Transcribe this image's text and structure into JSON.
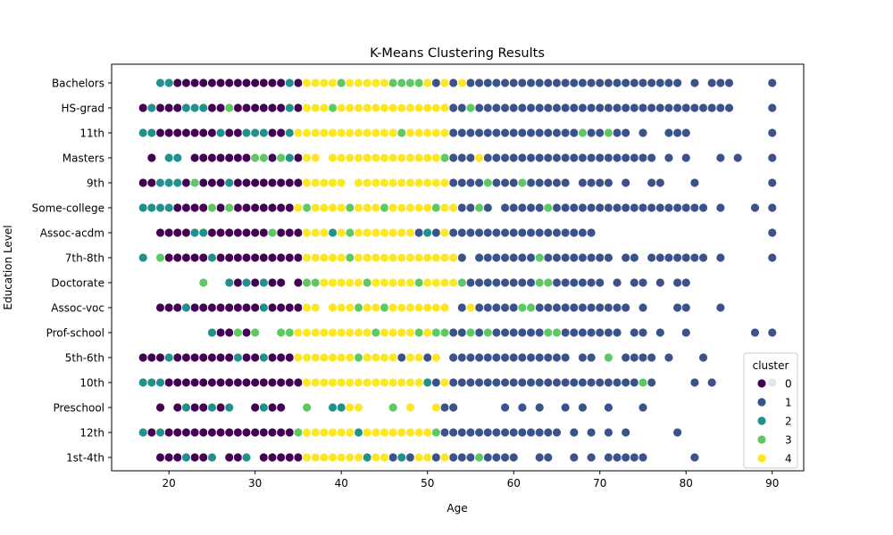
{
  "chart_data": {
    "type": "scatter",
    "title": "K-Means Clustering Results",
    "xlabel": "Age",
    "ylabel": "Education Level",
    "xlim": [
      13.35,
      93.65
    ],
    "x_ticks": [
      20,
      30,
      40,
      50,
      60,
      70,
      80,
      90
    ],
    "categories": [
      "Bachelors",
      "HS-grad",
      "11th",
      "Masters",
      "9th",
      "Some-college",
      "Assoc-acdm",
      "7th-8th",
      "Doctorate",
      "Assoc-voc",
      "Prof-school",
      "5th-6th",
      "10th",
      "Preschool",
      "12th",
      "1st-4th"
    ],
    "grid": false,
    "legend": {
      "title": "cluster",
      "placement": "lower right",
      "entries": [
        {
          "label": "0",
          "color": "#440154"
        },
        {
          "label": "1",
          "color": "#3b528b"
        },
        {
          "label": "2",
          "color": "#21918c"
        },
        {
          "label": "3",
          "color": "#5ec962"
        },
        {
          "label": "4",
          "color": "#fde725"
        }
      ]
    },
    "series": [
      {
        "name": "0",
        "color": "#440154",
        "points": {
          "Bachelors": [
            21,
            22,
            23,
            24,
            25,
            26,
            27,
            28,
            29,
            30,
            31,
            32,
            33,
            35
          ],
          "HS-grad": [
            17,
            19,
            20,
            21,
            25,
            26,
            28,
            29,
            30,
            31,
            32,
            33,
            35
          ],
          "11th": [
            18,
            19,
            20,
            21,
            22,
            23,
            24,
            25,
            27,
            28,
            32,
            33
          ],
          "Masters": [
            18,
            23,
            24,
            25,
            26,
            27,
            28,
            29,
            32,
            35
          ],
          "9th": [
            17,
            18,
            22,
            23,
            24,
            25,
            26,
            28,
            29,
            30,
            31,
            32,
            33,
            34,
            35
          ],
          "Some-college": [
            21,
            22,
            23,
            24,
            25,
            26,
            28,
            29,
            30,
            31,
            32,
            33,
            34
          ],
          "Assoc-acdm": [
            19,
            20,
            21,
            22,
            25,
            26,
            27,
            28,
            29,
            30,
            31,
            33,
            34,
            35
          ],
          "7th-8th": [
            20,
            21,
            22,
            23,
            24,
            26,
            27,
            28,
            29,
            30,
            31,
            32,
            33,
            34,
            35
          ],
          "Doctorate": [
            28,
            30,
            32,
            33,
            35
          ],
          "Assoc-voc": [
            19,
            20,
            21,
            23,
            24,
            25,
            26,
            27,
            28,
            29,
            30,
            32,
            33,
            34,
            35
          ],
          "Prof-school": [
            26,
            27,
            29
          ],
          "5th-6th": [
            17,
            18,
            19,
            21,
            22,
            23,
            24,
            25,
            26,
            27,
            29,
            30,
            32,
            33,
            34
          ],
          "10th": [
            20,
            21,
            22,
            23,
            24,
            25,
            26,
            27,
            28,
            29,
            30,
            31,
            32,
            33,
            34,
            35
          ],
          "Preschool": [
            19,
            21,
            23,
            24,
            26,
            30,
            32,
            33
          ],
          "12th": [
            18,
            20,
            21,
            22,
            23,
            24,
            25,
            26,
            27,
            28,
            29,
            30,
            31,
            32,
            33,
            34
          ],
          "1st-4th": [
            19,
            20,
            21,
            23,
            24,
            27,
            28,
            31,
            32,
            33,
            34,
            35
          ]
        }
      },
      {
        "name": "1",
        "color": "#3b528b",
        "points": {
          "Bachelors": [
            51,
            53,
            55,
            56,
            57,
            58,
            59,
            60,
            61,
            62,
            63,
            64,
            65,
            66,
            67,
            68,
            69,
            70,
            71,
            72,
            73,
            74,
            75,
            76,
            77,
            78,
            79,
            81,
            83,
            84,
            85,
            90
          ],
          "HS-grad": [
            53,
            54,
            56,
            57,
            58,
            59,
            60,
            61,
            62,
            63,
            64,
            65,
            66,
            67,
            68,
            69,
            70,
            71,
            72,
            73,
            74,
            75,
            76,
            77,
            78,
            79,
            80,
            81,
            82,
            83,
            84,
            85,
            90
          ],
          "11th": [
            53,
            54,
            55,
            56,
            57,
            58,
            59,
            60,
            61,
            62,
            63,
            64,
            65,
            66,
            67,
            69,
            70,
            72,
            73,
            75,
            78,
            79,
            80,
            90
          ],
          "Masters": [
            53,
            54,
            55,
            57,
            58,
            59,
            60,
            61,
            62,
            63,
            64,
            65,
            66,
            67,
            68,
            69,
            70,
            71,
            72,
            73,
            74,
            75,
            76,
            78,
            80,
            84,
            86,
            90
          ],
          "9th": [
            53,
            54,
            55,
            56,
            58,
            59,
            60,
            62,
            63,
            64,
            65,
            66,
            68,
            69,
            70,
            71,
            73,
            76,
            77,
            81,
            90
          ],
          "Some-college": [
            54,
            55,
            56,
            57,
            59,
            60,
            61,
            62,
            63,
            65,
            66,
            67,
            68,
            69,
            70,
            71,
            72,
            73,
            74,
            75,
            76,
            77,
            78,
            79,
            80,
            81,
            82,
            84,
            88,
            90
          ],
          "Assoc-acdm": [
            49,
            51,
            53,
            54,
            55,
            56,
            57,
            58,
            59,
            60,
            61,
            62,
            63,
            64,
            65,
            66,
            67,
            68,
            69,
            90
          ],
          "7th-8th": [
            54,
            56,
            57,
            58,
            59,
            60,
            61,
            62,
            64,
            65,
            66,
            67,
            68,
            69,
            70,
            71,
            73,
            74,
            76,
            77,
            78,
            79,
            80,
            81,
            82,
            84,
            90
          ],
          "Doctorate": [
            55,
            56,
            57,
            58,
            59,
            60,
            61,
            62,
            65,
            66,
            67,
            68,
            69,
            70,
            72,
            74,
            75,
            77,
            79,
            80
          ],
          "Assoc-voc": [
            54,
            56,
            57,
            58,
            59,
            60,
            62,
            63,
            64,
            65,
            66,
            67,
            68,
            69,
            70,
            71,
            72,
            73,
            75,
            79,
            80,
            84
          ],
          "Prof-school": [
            53,
            54,
            56,
            58,
            59,
            60,
            61,
            62,
            63,
            66,
            67,
            68,
            69,
            70,
            71,
            72,
            74,
            75,
            77,
            80,
            88,
            90
          ],
          "5th-6th": [
            47,
            50,
            53,
            54,
            55,
            56,
            57,
            58,
            59,
            60,
            61,
            62,
            63,
            64,
            65,
            66,
            68,
            69,
            73,
            74,
            75,
            76,
            78,
            82
          ],
          "10th": [
            51,
            53,
            54,
            55,
            56,
            57,
            58,
            59,
            60,
            61,
            62,
            63,
            64,
            65,
            66,
            67,
            68,
            69,
            70,
            71,
            72,
            73,
            74,
            76,
            81,
            83,
            90
          ],
          "Preschool": [
            51,
            52,
            53,
            59,
            61,
            63,
            66,
            68,
            71,
            75
          ],
          "12th": [
            52,
            53,
            54,
            55,
            56,
            57,
            58,
            59,
            60,
            61,
            62,
            63,
            64,
            65,
            67,
            69,
            71,
            73,
            79
          ],
          "1st-4th": [
            44,
            46,
            48,
            51,
            53,
            54,
            55,
            57,
            58,
            59,
            60,
            63,
            64,
            67,
            69,
            71,
            72,
            73,
            74,
            75,
            81
          ]
        }
      },
      {
        "name": "2",
        "color": "#21918c",
        "points": {
          "Bachelors": [
            19,
            20,
            34
          ],
          "HS-grad": [
            18,
            22,
            23,
            24,
            34
          ],
          "11th": [
            17,
            18,
            26,
            29,
            30,
            31,
            34
          ],
          "Masters": [
            20,
            21,
            34
          ],
          "9th": [
            19,
            20,
            21,
            27
          ],
          "Some-college": [
            17,
            18,
            19,
            20,
            27
          ],
          "Assoc-acdm": [
            23,
            24,
            39,
            50
          ],
          "7th-8th": [
            17,
            25
          ],
          "Doctorate": [
            27,
            29,
            31
          ],
          "Assoc-voc": [
            22,
            31
          ],
          "Prof-school": [
            25
          ],
          "5th-6th": [
            20,
            28,
            31
          ],
          "10th": [
            17,
            18,
            19,
            50
          ],
          "Preschool": [
            22,
            25,
            27,
            31,
            39,
            40
          ],
          "12th": [
            17,
            19,
            42
          ],
          "1st-4th": [
            22,
            25,
            29,
            43,
            47
          ]
        }
      },
      {
        "name": "3",
        "color": "#5ec962",
        "points": {
          "Bachelors": [
            40,
            46,
            47,
            48,
            49
          ],
          "HS-grad": [
            27,
            39,
            55
          ],
          "11th": [
            47,
            68,
            71
          ],
          "Masters": [
            30,
            31,
            33,
            52
          ],
          "9th": [
            23,
            57,
            61
          ],
          "Some-college": [
            25,
            27,
            36,
            41,
            45,
            51,
            56,
            64
          ],
          "Assoc-acdm": [
            32,
            41
          ],
          "7th-8th": [
            19,
            41,
            63
          ],
          "Doctorate": [
            24,
            36,
            37,
            43,
            49,
            54,
            63,
            64
          ],
          "Assoc-voc": [
            42,
            45,
            61,
            62
          ],
          "Prof-school": [
            28,
            30,
            33,
            34,
            44,
            49,
            51,
            52,
            55,
            57,
            64,
            65
          ],
          "5th-6th": [
            42,
            71
          ],
          "10th": [
            75
          ],
          "Preschool": [
            36,
            46
          ],
          "12th": [
            35,
            51
          ],
          "1st-4th": [
            56
          ]
        }
      },
      {
        "name": "4",
        "color": "#fde725",
        "points": {
          "Bachelors": [
            36,
            37,
            38,
            39,
            41,
            42,
            43,
            44,
            45,
            50,
            52,
            54
          ],
          "HS-grad": [
            36,
            37,
            38,
            40,
            41,
            42,
            43,
            44,
            45,
            46,
            47,
            48,
            49,
            50,
            51,
            52
          ],
          "11th": [
            35,
            36,
            37,
            38,
            39,
            40,
            41,
            42,
            43,
            44,
            45,
            46,
            48,
            49,
            50,
            51,
            52
          ],
          "Masters": [
            36,
            37,
            39,
            40,
            41,
            42,
            43,
            44,
            45,
            46,
            47,
            48,
            49,
            50,
            51,
            56
          ],
          "9th": [
            36,
            37,
            38,
            39,
            40,
            42,
            43,
            44,
            45,
            46,
            47,
            48,
            49,
            50,
            51,
            52
          ],
          "Some-college": [
            35,
            37,
            38,
            39,
            40,
            42,
            43,
            44,
            46,
            47,
            48,
            49,
            50,
            52,
            53
          ],
          "Assoc-acdm": [
            36,
            37,
            38,
            40,
            42,
            43,
            44,
            45,
            46,
            47,
            48,
            52
          ],
          "7th-8th": [
            36,
            37,
            38,
            39,
            40,
            42,
            43,
            44,
            45,
            46,
            47,
            48,
            49,
            50,
            51,
            52,
            53
          ],
          "Doctorate": [
            38,
            39,
            40,
            41,
            42,
            44,
            45,
            46,
            47,
            48,
            50,
            51,
            52,
            53
          ],
          "Assoc-voc": [
            36,
            37,
            39,
            40,
            41,
            43,
            44,
            46,
            47,
            48,
            49,
            50,
            51,
            52,
            55
          ],
          "Prof-school": [
            35,
            36,
            37,
            38,
            39,
            40,
            41,
            42,
            43,
            45,
            46,
            47,
            48,
            50
          ],
          "5th-6th": [
            35,
            36,
            37,
            38,
            39,
            40,
            41,
            43,
            44,
            45,
            46,
            48,
            49,
            51
          ],
          "10th": [
            36,
            37,
            38,
            39,
            40,
            41,
            42,
            43,
            44,
            45,
            46,
            47,
            48,
            49,
            52
          ],
          "Preschool": [
            41,
            42,
            48,
            51
          ],
          "12th": [
            36,
            37,
            38,
            39,
            40,
            41,
            43,
            44,
            45,
            46,
            47,
            48,
            49,
            50
          ],
          "1st-4th": [
            36,
            37,
            38,
            39,
            40,
            41,
            42,
            44,
            45,
            49,
            50,
            52
          ]
        }
      }
    ]
  }
}
